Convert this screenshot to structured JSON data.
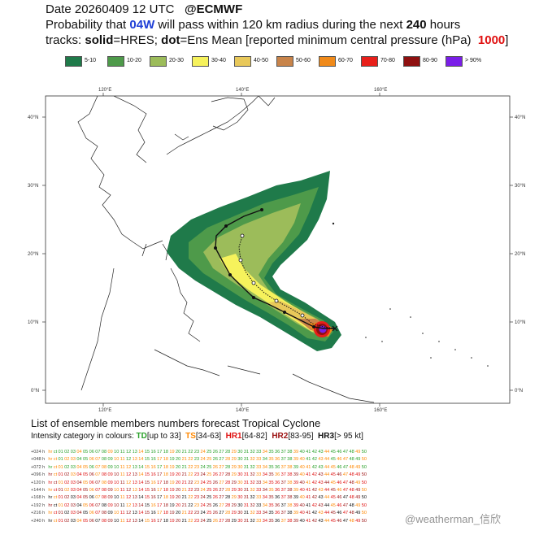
{
  "header": {
    "line1_prefix": "Date 20260409 12 UTC",
    "line1_source": "@ECMWF",
    "line2_a": "Probability that",
    "line2_storm": "04W",
    "line2_b": "will pass within 120 km radius during the next",
    "line2_hours": "240",
    "line2_c": "hours",
    "line3_a": "tracks:",
    "line3_solid": "solid",
    "line3_b": "=HRES;",
    "line3_dot": "dot",
    "line3_c": "=Ens Mean [reported minimum central pressure (hPa)",
    "line3_pressure": "1000",
    "line3_end": "]"
  },
  "legend": [
    {
      "label": "5-10",
      "color": "#1f7a4a"
    },
    {
      "label": "10-20",
      "color": "#4e9a4a"
    },
    {
      "label": "20-30",
      "color": "#9cbc5a"
    },
    {
      "label": "30-40",
      "color": "#f6f25c"
    },
    {
      "label": "40-50",
      "color": "#e8c85a"
    },
    {
      "label": "50-60",
      "color": "#c8844a"
    },
    {
      "label": "60-70",
      "color": "#f08a1a"
    },
    {
      "label": "70-80",
      "color": "#e81f1a"
    },
    {
      "label": "80-90",
      "color": "#8e1010"
    },
    {
      "label": "> 90%",
      "color": "#7a1ee8"
    }
  ],
  "map": {
    "lon_labels": [
      "120°E",
      "140°E",
      "160°E"
    ],
    "lat_labels": [
      "40°N",
      "30°N",
      "20°N",
      "10°N",
      "0°N"
    ]
  },
  "list_title": "List of ensemble members numbers forecast Tropical Cyclone",
  "intensity": {
    "prefix": "Intensity category in colours:",
    "td": "TD",
    "td_range": "[up to 33]",
    "ts": "TS",
    "ts_range": "[34-63]",
    "hr1": "HR1",
    "hr1_range": "[64-82]",
    "hr2": "HR2",
    "hr2_range": "[83-95]",
    "hr3": "HR3",
    "hr3_range": "[> 95 kt]"
  },
  "members": {
    "leads": [
      "+024 h",
      "+048 h",
      "+072 h",
      "+096 h",
      "+120 h",
      "+144 h",
      "+168 h",
      "+192 h",
      "+216 h",
      "+240 h"
    ],
    "hres_tag": "hr",
    "ctl_tag": "ct",
    "numbers": [
      "01",
      "02",
      "03",
      "04",
      "05",
      "06",
      "07",
      "08",
      "09",
      "10",
      "11",
      "12",
      "13",
      "14",
      "15",
      "16",
      "17",
      "18",
      "19",
      "20",
      "21",
      "22",
      "23",
      "24",
      "25",
      "26",
      "27",
      "28",
      "29",
      "30",
      "31",
      "32",
      "33",
      "34",
      "35",
      "36",
      "37",
      "38",
      "39",
      "40",
      "41",
      "42",
      "43",
      "44",
      "45",
      "46",
      "47",
      "48",
      "49",
      "50"
    ]
  },
  "watermark": "@weatherman_信欣"
}
